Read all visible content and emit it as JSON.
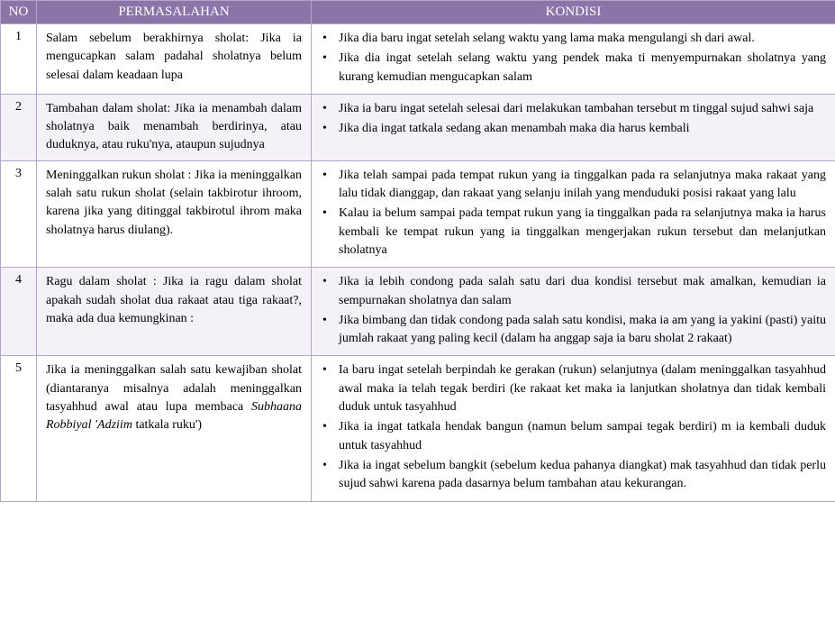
{
  "header": {
    "no": "NO",
    "permasalahan": "PERMASALAHAN",
    "kondisi": "KONDISI"
  },
  "colWidths": {
    "no": "40px",
    "permasalahan": "305px",
    "kondisi": "582px"
  },
  "rows": [
    {
      "no": "1",
      "permasalahan": "Salam sebelum berakhirnya sholat: Jika ia mengucapkan salam padahal sholatnya belum selesai dalam keadaan lupa",
      "kondisi": [
        "Jika dia baru ingat setelah selang waktu yang lama maka mengulangi sh dari awal.",
        "Jika dia ingat setelah selang waktu yang pendek maka ti menyempurnakan sholatnya yang kurang kemudian mengucapkan salam"
      ],
      "altRow": false
    },
    {
      "no": "2",
      "permasalahan": "Tambahan dalam sholat: Jika ia menambah dalam sholatnya baik menambah berdirinya, atau duduknya, atau ruku'nya, ataupun sujudnya",
      "kondisi": [
        "Jika ia baru ingat setelah selesai dari melakukan tambahan tersebut m tinggal sujud sahwi saja",
        "Jika dia ingat tatkala sedang akan menambah maka dia harus kembali"
      ],
      "altRow": true
    },
    {
      "no": "3",
      "permasalahan": "Meninggalkan rukun sholat : Jika ia meninggalkan salah satu rukun sholat (selain takbirotur ihroom, karena jika yang ditinggal takbirotul ihrom maka sholatnya harus diulang).",
      "kondisi": [
        "Jika telah sampai pada tempat rukun yang ia tinggalkan pada ra selanjutnya maka rakaat yang lalu tidak dianggap, dan rakaat yang selanju inilah yang menduduki posisi rakaat yang lalu",
        "Kalau ia belum sampai pada tempat rukun yang ia tinggalkan pada ra selanjutnya maka ia harus kembali ke tempat rukun yang ia tinggalkan mengerjakan rukun tersebut dan melanjutkan sholatnya"
      ],
      "altRow": false
    },
    {
      "no": "4",
      "permasalahan": "Ragu dalam sholat : Jika ia ragu dalam sholat apakah sudah sholat dua rakaat atau tiga rakaat?, maka ada dua kemungkinan :",
      "kondisi": [
        "Jika ia lebih condong pada salah satu dari dua kondisi tersebut mak amalkan, kemudian ia sempurnakan sholatnya dan salam",
        "Jika bimbang dan tidak condong pada salah satu kondisi, maka ia am yang ia yakini (pasti) yaitu jumlah rakaat yang paling kecil (dalam ha anggap saja ia baru sholat 2 rakaat)"
      ],
      "altRow": true
    },
    {
      "no": "5",
      "permasalahan_html": "Jika ia meninggalkan salah satu kewajiban sholat (diantaranya misalnya adalah meninggalkan tasyahhud awal atau lupa membaca <em class=\"italic\">Subhaana Robbiyal 'Adziim</em> tatkala ruku')",
      "kondisi": [
        "Ia baru ingat setelah berpindah ke gerakan (rukun) selanjutnya (dalam meninggalkan tasyahhud awal maka ia telah tegak berdiri (ke rakaat ket maka ia lanjutkan sholatnya dan tidak kembali duduk untuk tasyahhud",
        "Jika ia ingat tatkala hendak bangun (namun belum sampai tegak berdiri) m ia kembali duduk untuk tasyahhud",
        "Jika ia ingat sebelum bangkit (sebelum kedua pahanya diangkat) mak tasyahhud dan tidak perlu sujud sahwi karena pada dasarnya belum tambahan atau kekurangan."
      ],
      "altRow": false
    }
  ]
}
